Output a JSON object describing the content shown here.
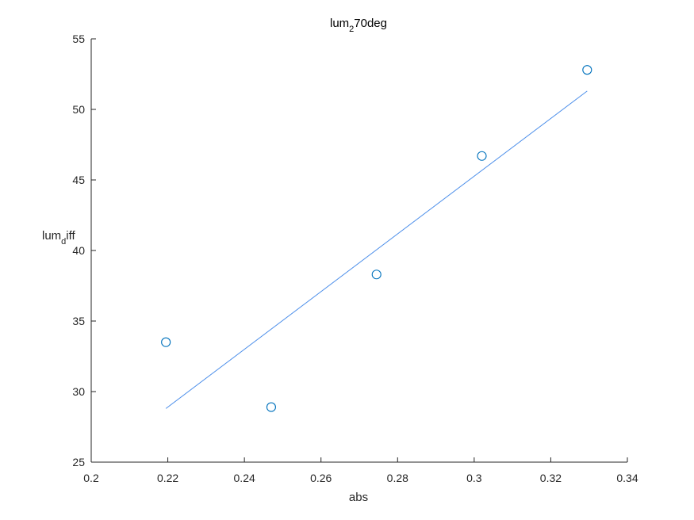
{
  "chart_data": {
    "type": "scatter",
    "title": {
      "parts": [
        {
          "text": "lum",
          "sub": false
        },
        {
          "text": "2",
          "sub": true
        },
        {
          "text": "70deg",
          "sub": false
        }
      ]
    },
    "xlabel": "abs",
    "ylabel": {
      "parts": [
        {
          "text": "lum",
          "sub": false
        },
        {
          "text": "d",
          "sub": true
        },
        {
          "text": "iff",
          "sub": false
        }
      ]
    },
    "xlim": [
      0.2,
      0.34
    ],
    "ylim": [
      25,
      55
    ],
    "xticks": [
      "0.2",
      "0.22",
      "0.24",
      "0.26",
      "0.28",
      "0.3",
      "0.32",
      "0.34"
    ],
    "yticks": [
      "25",
      "30",
      "35",
      "40",
      "45",
      "50",
      "55"
    ],
    "grid": false,
    "series": [
      {
        "kind": "points",
        "marker": "circle",
        "color": "#0072BD",
        "x": [
          0.2195,
          0.247,
          0.2745,
          0.302,
          0.3295
        ],
        "y": [
          33.5,
          28.9,
          38.3,
          46.7,
          52.8
        ]
      },
      {
        "kind": "fit-line",
        "color": "#4D8FEA",
        "x": [
          0.2195,
          0.3295
        ],
        "y": [
          28.8,
          51.3
        ]
      }
    ]
  }
}
